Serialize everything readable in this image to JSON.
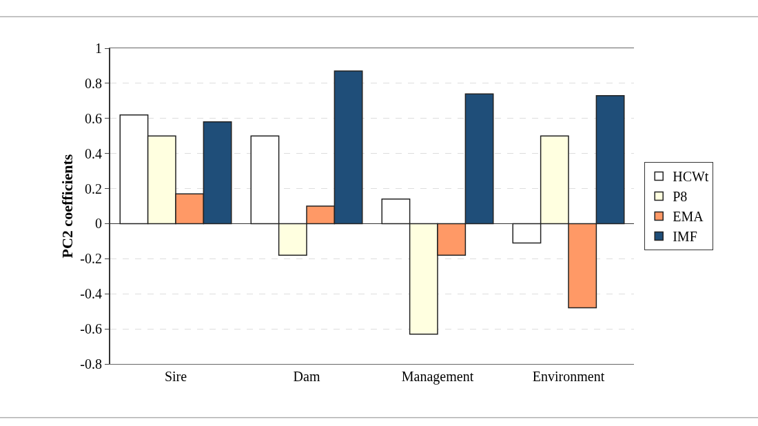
{
  "chart_data": {
    "type": "bar",
    "ylabel": "PC2 coefficients",
    "categories": [
      "Sire",
      "Dam",
      "Management",
      "Environment"
    ],
    "series": [
      {
        "name": "HCWt",
        "color": "#ffffff",
        "values": [
          0.62,
          0.5,
          0.14,
          -0.11
        ]
      },
      {
        "name": "P8",
        "color": "#ffffe0",
        "values": [
          0.5,
          -0.18,
          -0.63,
          0.5
        ]
      },
      {
        "name": "EMA",
        "color": "#ff9966",
        "values": [
          0.17,
          0.1,
          -0.18,
          -0.48
        ]
      },
      {
        "name": "IMF",
        "color": "#1f4e79",
        "values": [
          0.58,
          0.87,
          0.74,
          0.73
        ]
      }
    ],
    "ylim": [
      -0.8,
      1
    ],
    "yticks": [
      -0.8,
      -0.6,
      -0.4,
      -0.2,
      0,
      0.2,
      0.4,
      0.6,
      0.8,
      1
    ],
    "grid": "y",
    "legend": "right"
  }
}
